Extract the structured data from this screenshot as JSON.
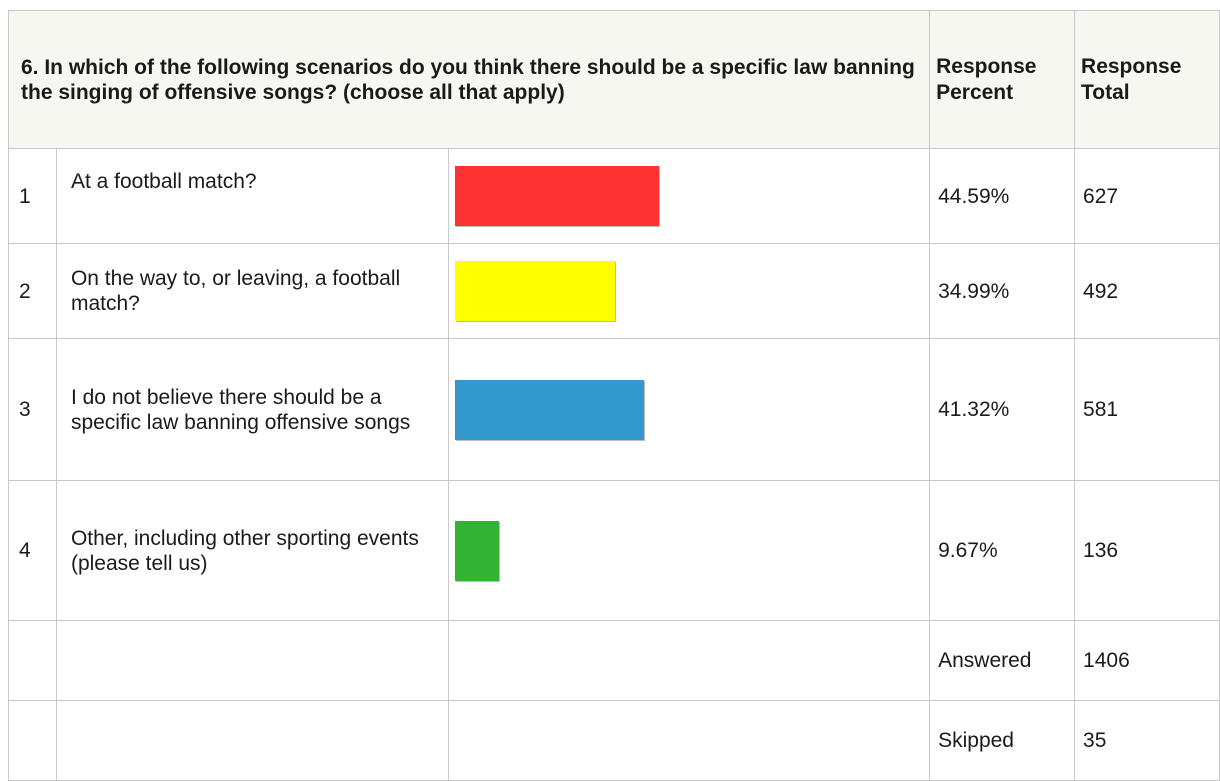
{
  "header": {
    "question": "6. In which of the following scenarios do you think there should be a specific law banning the singing of offensive songs? (choose all that apply)",
    "percent_header": "Response Percent",
    "total_header": "Response Total"
  },
  "rows": [
    {
      "num": "1",
      "label": "At a football match?",
      "percent": "44.59%",
      "total": "627"
    },
    {
      "num": "2",
      "label": "On the way to, or leaving, a football match?",
      "percent": "34.99%",
      "total": "492"
    },
    {
      "num": "3",
      "label": "I do not believe there should be a specific law banning offensive songs",
      "percent": "41.32%",
      "total": "581"
    },
    {
      "num": "4",
      "label": "Other, including other sporting events (please tell us)",
      "percent": "9.67%",
      "total": "136"
    }
  ],
  "summary": {
    "answered_label": "Answered",
    "answered_value": "1406",
    "skipped_label": "Skipped",
    "skipped_value": "35"
  },
  "chart_data": {
    "type": "bar",
    "categories": [
      "At a football match?",
      "On the way to, or leaving, a football match?",
      "I do not believe there should be a specific law banning offensive songs",
      "Other, including other sporting events (please tell us)"
    ],
    "values": [
      44.59,
      34.99,
      41.32,
      9.67
    ],
    "totals": [
      627,
      492,
      581,
      136
    ],
    "colors": [
      "#ff3333",
      "#ffff00",
      "#3399cc",
      "#33b233"
    ],
    "orientation": "horizontal",
    "ylim": [
      0,
      100
    ],
    "answered": 1406,
    "skipped": 35
  }
}
